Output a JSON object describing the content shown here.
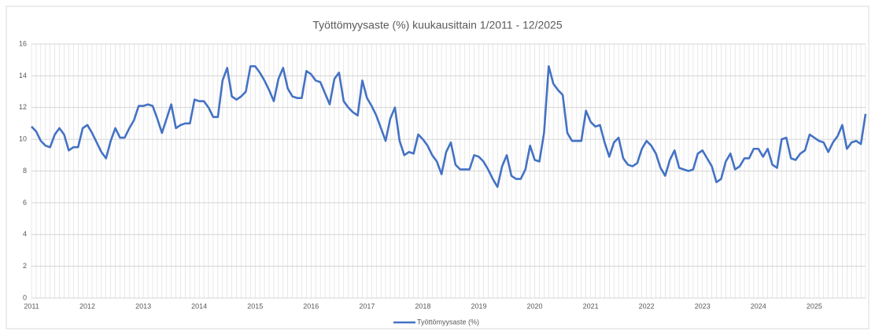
{
  "chart_data": {
    "type": "line",
    "title": "Työttömyysaste (%) kuukausittain 1/2011 - 12/2025",
    "categories": [
      "2011",
      null,
      null,
      null,
      null,
      null,
      null,
      null,
      null,
      null,
      null,
      null,
      "2012",
      null,
      null,
      null,
      null,
      null,
      null,
      null,
      null,
      null,
      null,
      null,
      "2013",
      null,
      null,
      null,
      null,
      null,
      null,
      null,
      null,
      null,
      null,
      null,
      "2014",
      null,
      null,
      null,
      null,
      null,
      null,
      null,
      null,
      null,
      null,
      null,
      "2015",
      null,
      null,
      null,
      null,
      null,
      null,
      null,
      null,
      null,
      null,
      null,
      "2016",
      null,
      null,
      null,
      null,
      null,
      null,
      null,
      null,
      null,
      null,
      null,
      "2017",
      null,
      null,
      null,
      null,
      null,
      null,
      null,
      null,
      null,
      null,
      null,
      "2018",
      null,
      null,
      null,
      null,
      null,
      null,
      null,
      null,
      null,
      null,
      null,
      "2019",
      null,
      null,
      null,
      null,
      null,
      null,
      null,
      null,
      null,
      null,
      null,
      "2020",
      null,
      null,
      null,
      null,
      null,
      null,
      null,
      null,
      null,
      null,
      null,
      "2021",
      null,
      null,
      null,
      null,
      null,
      null,
      null,
      null,
      null,
      null,
      null,
      "2022",
      null,
      null,
      null,
      null,
      null,
      null,
      null,
      null,
      null,
      null,
      null,
      "2023",
      null,
      null,
      null,
      null,
      null,
      null,
      null,
      null,
      null,
      null,
      null,
      "2024",
      null,
      null,
      null,
      null,
      null,
      null,
      null,
      null,
      null,
      null,
      null,
      "2025",
      null,
      null,
      null,
      null,
      null,
      null,
      null,
      null,
      null,
      null,
      null
    ],
    "series": [
      {
        "name": "Työttömyysaste (%)",
        "color": "#4472c4",
        "values": [
          10.8,
          10.5,
          9.9,
          9.6,
          9.5,
          10.3,
          10.7,
          10.3,
          9.3,
          9.5,
          9.5,
          10.7,
          10.9,
          10.4,
          9.8,
          9.2,
          8.8,
          9.9,
          10.7,
          10.1,
          10.1,
          10.7,
          11.2,
          12.1,
          12.1,
          12.2,
          12.1,
          11.3,
          10.4,
          11.3,
          12.2,
          10.7,
          10.9,
          11.0,
          11.0,
          12.5,
          12.4,
          12.4,
          12.0,
          11.4,
          11.4,
          13.7,
          14.5,
          12.7,
          12.5,
          12.7,
          13.0,
          14.6,
          14.6,
          14.2,
          13.7,
          13.1,
          12.4,
          13.8,
          14.5,
          13.2,
          12.7,
          12.6,
          12.6,
          14.3,
          14.1,
          13.7,
          13.6,
          12.9,
          12.2,
          13.8,
          14.2,
          12.4,
          12.0,
          11.7,
          11.5,
          13.7,
          12.6,
          12.1,
          11.5,
          10.7,
          9.9,
          11.3,
          12.0,
          9.9,
          9.0,
          9.2,
          9.1,
          10.3,
          10.0,
          9.6,
          9.0,
          8.6,
          7.8,
          9.2,
          9.8,
          8.4,
          8.1,
          8.1,
          8.1,
          9.0,
          8.9,
          8.6,
          8.1,
          7.5,
          7.0,
          8.3,
          9.0,
          7.7,
          7.5,
          7.5,
          8.1,
          9.6,
          8.7,
          8.6,
          10.4,
          14.6,
          13.5,
          13.1,
          12.8,
          10.4,
          9.9,
          9.9,
          9.9,
          11.8,
          11.1,
          10.8,
          10.9,
          9.8,
          8.9,
          9.8,
          10.1,
          8.8,
          8.4,
          8.3,
          8.5,
          9.4,
          9.9,
          9.6,
          9.1,
          8.2,
          7.7,
          8.7,
          9.3,
          8.2,
          8.1,
          8.0,
          8.1,
          9.1,
          9.3,
          8.8,
          8.3,
          7.3,
          7.5,
          8.6,
          9.1,
          8.1,
          8.3,
          8.8,
          8.8,
          9.4,
          9.4,
          8.9,
          9.4,
          8.4,
          8.2,
          10.0,
          10.1,
          8.8,
          8.7,
          9.1,
          9.3,
          10.3,
          10.1,
          9.9,
          9.8,
          9.2,
          9.8,
          10.2,
          10.9,
          9.4,
          9.8,
          9.9,
          9.7,
          11.6
        ]
      }
    ],
    "ylim": [
      0,
      16
    ],
    "yticks": [
      0,
      2,
      4,
      6,
      8,
      10,
      12,
      14,
      16
    ],
    "grid": true,
    "legend": "bottom"
  }
}
